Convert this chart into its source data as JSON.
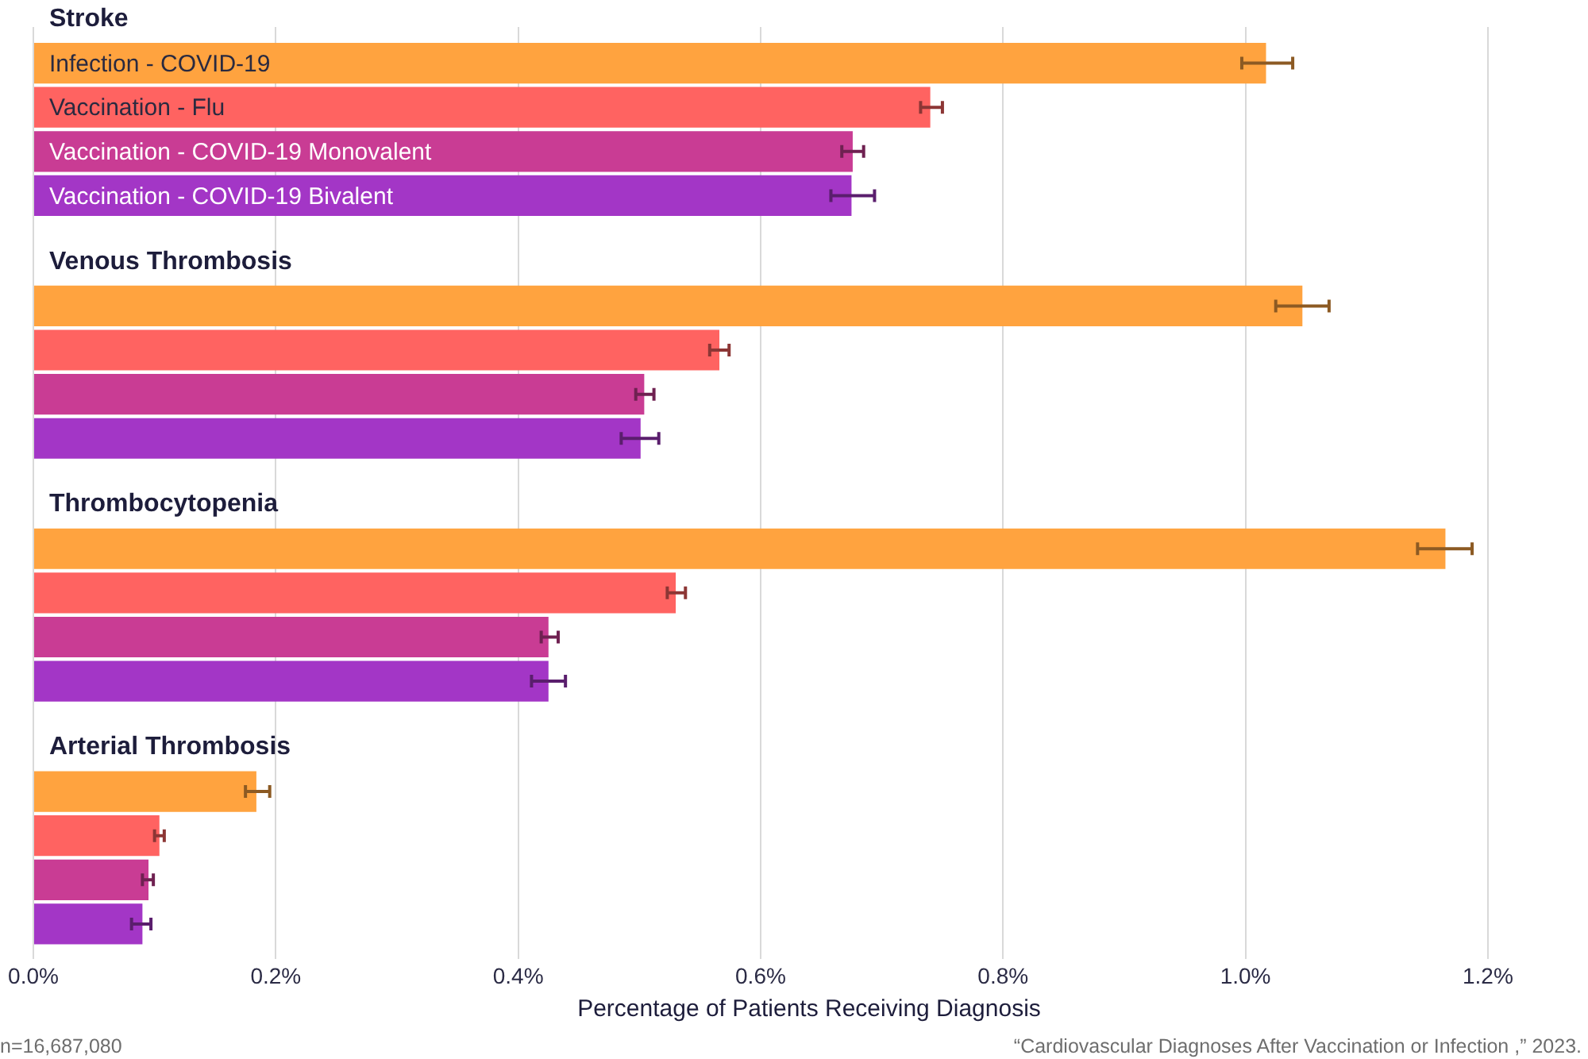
{
  "chart_data": {
    "type": "bar",
    "orientation": "horizontal",
    "categories": [
      "Stroke",
      "Venous Thrombosis",
      "Thrombocytopenia",
      "Arterial Thrombosis"
    ],
    "series": [
      {
        "name": "Infection - COVID-19",
        "color": "#ffa33f",
        "values": [
          1.017,
          1.047,
          1.165,
          0.184
        ],
        "errors": [
          [
            0.997,
            1.039
          ],
          [
            1.025,
            1.069
          ],
          [
            1.142,
            1.187
          ],
          [
            0.175,
            0.195
          ]
        ]
      },
      {
        "name": "Vaccination - Flu",
        "color": "#ff6361",
        "values": [
          0.74,
          0.566,
          0.53,
          0.104
        ],
        "errors": [
          [
            0.732,
            0.75
          ],
          [
            0.558,
            0.574
          ],
          [
            0.523,
            0.538
          ],
          [
            0.1,
            0.108
          ]
        ]
      },
      {
        "name": "Vaccination - COVID-19 Monovalent",
        "color": "#c93c94",
        "values": [
          0.676,
          0.504,
          0.425,
          0.095
        ],
        "errors": [
          [
            0.667,
            0.685
          ],
          [
            0.497,
            0.512
          ],
          [
            0.419,
            0.433
          ],
          [
            0.09,
            0.099
          ]
        ]
      },
      {
        "name": "Vaccination - COVID-19 Bivalent",
        "color": "#a336c6",
        "values": [
          0.675,
          0.501,
          0.425,
          0.09
        ],
        "errors": [
          [
            0.658,
            0.694
          ],
          [
            0.485,
            0.516
          ],
          [
            0.411,
            0.439
          ],
          [
            0.081,
            0.097
          ]
        ]
      }
    ],
    "xlabel": "Percentage of Patients Receiving Diagnosis",
    "xlim": [
      0,
      1.28
    ],
    "xticks": [
      {
        "value": 0,
        "label": "0.0%"
      },
      {
        "value": 0.2,
        "label": "0.2%"
      },
      {
        "value": 0.4,
        "label": "0.4%"
      },
      {
        "value": 0.6,
        "label": "0.6%"
      },
      {
        "value": 0.8,
        "label": "0.8%"
      },
      {
        "value": 1.0,
        "label": "1.0%"
      },
      {
        "value": 1.2,
        "label": "1.2%"
      }
    ],
    "grid": "x",
    "annotations": [
      "n=16,687,080",
      "“Cardiovascular Diagnoses After Vaccination or Infection ,” 2023."
    ]
  }
}
